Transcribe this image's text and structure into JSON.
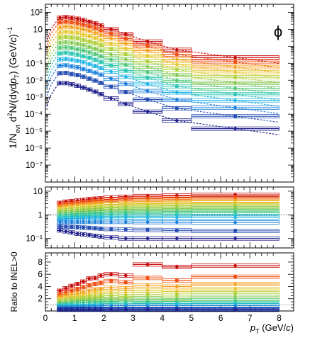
{
  "chart_data": [
    {
      "type": "scatter",
      "panel": "spectra",
      "symbol": "ϕ",
      "ylabel_parts": [
        "1/N",
        "evt",
        " d",
        "2",
        "N/(dyd",
        "p",
        "T",
        ") (GeV/",
        "c",
        ")",
        "−1"
      ],
      "y_scale": "log",
      "ylim": [
        1e-08,
        300
      ],
      "xlim": [
        0,
        8.5
      ],
      "ytick_labels": {
        "2": "10²",
        "1": "10",
        "0": "1",
        "-1": "10⁻¹",
        "-2": "10⁻²",
        "-3": "10⁻³",
        "-4": "10⁻⁴",
        "-5": "10⁻⁵",
        "-6": "10⁻⁶",
        "-7": "10⁻⁷"
      },
      "x_bins": [
        [
          0.4,
          0.6
        ],
        [
          0.6,
          0.8
        ],
        [
          0.8,
          1.0
        ],
        [
          1.0,
          1.2
        ],
        [
          1.2,
          1.4
        ],
        [
          1.4,
          1.6
        ],
        [
          1.6,
          1.8
        ],
        [
          1.8,
          2.0
        ],
        [
          2.0,
          2.5
        ],
        [
          2.5,
          3.0
        ],
        [
          3.0,
          4.0
        ],
        [
          4.0,
          5.0
        ],
        [
          5.0,
          8.0
        ]
      ],
      "series_colors": [
        "#c80a0a",
        "#f05014",
        "#f5a01e",
        "#e6c832",
        "#b4d240",
        "#82c850",
        "#50c878",
        "#32c8b4",
        "#1eb4e6",
        "#1e82dc",
        "#2850b4",
        "#1e1e8c"
      ],
      "series": [
        {
          "values": [
            48,
            52,
            48,
            42,
            35,
            28,
            22,
            17,
            10,
            5.2,
            1.9,
            0.62,
            0.22
          ]
        },
        {
          "values": [
            26,
            28,
            26,
            23,
            19,
            15,
            12,
            9,
            5.4,
            2.8,
            1.05,
            0.33,
            0.12
          ]
        },
        {
          "values": [
            13,
            14.5,
            13.5,
            12,
            10,
            8,
            6.3,
            4.8,
            2.9,
            1.45,
            0.55,
            0.17,
            0.06
          ]
        },
        {
          "values": [
            6.5,
            7.2,
            6.7,
            5.9,
            4.9,
            3.9,
            3.1,
            2.3,
            1.4,
            0.72,
            0.27,
            0.085,
            0.03
          ]
        },
        {
          "values": [
            3.3,
            3.6,
            3.3,
            2.9,
            2.4,
            1.9,
            1.5,
            1.15,
            0.7,
            0.35,
            0.13,
            0.042,
            0.015
          ]
        },
        {
          "values": [
            1.6,
            1.75,
            1.6,
            1.4,
            1.15,
            0.92,
            0.72,
            0.55,
            0.33,
            0.17,
            0.063,
            0.02,
            0.007
          ]
        },
        {
          "values": [
            0.8,
            0.85,
            0.78,
            0.68,
            0.56,
            0.44,
            0.35,
            0.26,
            0.16,
            0.08,
            0.03,
            0.0095,
            0.0033
          ]
        },
        {
          "values": [
            0.38,
            0.41,
            0.37,
            0.32,
            0.26,
            0.21,
            0.16,
            0.12,
            0.074,
            0.037,
            0.014,
            0.0044,
            0.0015
          ]
        },
        {
          "values": [
            0.17,
            0.18,
            0.16,
            0.14,
            0.115,
            0.09,
            0.07,
            0.052,
            0.032,
            0.016,
            0.006,
            0.0019,
            0.00065
          ]
        },
        {
          "values": [
            0.072,
            0.075,
            0.066,
            0.057,
            0.046,
            0.036,
            0.028,
            0.021,
            0.0125,
            0.0062,
            0.0023,
            0.0007,
            0.00024
          ]
        },
        {
          "values": [
            0.026,
            0.027,
            0.023,
            0.02,
            0.016,
            0.0125,
            0.0096,
            0.007,
            0.0041,
            0.002,
            0.00072,
            0.00022,
            7.5e-05
          ]
        },
        {
          "values": [
            0.0068,
            0.0068,
            0.0057,
            0.0047,
            0.0037,
            0.0028,
            0.0021,
            0.0015,
            0.00085,
            0.0004,
            0.00014,
            4.2e-05,
            1.4e-05
          ]
        }
      ],
      "fit_style": "dashed"
    },
    {
      "type": "scatter",
      "panel": "ratio",
      "y_scale": "log",
      "ylim": [
        0.04,
        15
      ],
      "ytick_labels": {
        "1": "10",
        "0": "1",
        "-1": "10⁻¹"
      },
      "reference_line": 1,
      "x_bins": [
        [
          0.4,
          0.6
        ],
        [
          0.6,
          0.8
        ],
        [
          0.8,
          1.0
        ],
        [
          1.0,
          1.2
        ],
        [
          1.2,
          1.4
        ],
        [
          1.4,
          1.6
        ],
        [
          1.6,
          1.8
        ],
        [
          1.8,
          2.0
        ],
        [
          2.0,
          2.5
        ],
        [
          2.5,
          3.0
        ],
        [
          3.0,
          4.0
        ],
        [
          4.0,
          5.0
        ],
        [
          5.0,
          8.0
        ]
      ],
      "series": [
        {
          "values": [
            3.2,
            3.6,
            3.8,
            4.0,
            4.3,
            4.6,
            4.8,
            5.0,
            5.4,
            5.8,
            6.2,
            6.6,
            7.0
          ]
        },
        {
          "values": [
            2.6,
            2.9,
            3.0,
            3.2,
            3.4,
            3.6,
            3.8,
            4.0,
            4.3,
            4.6,
            4.9,
            5.2,
            5.5
          ]
        },
        {
          "values": [
            2.1,
            2.3,
            2.4,
            2.55,
            2.7,
            2.85,
            3.0,
            3.1,
            3.3,
            3.5,
            3.7,
            3.9,
            4.1
          ]
        },
        {
          "values": [
            1.75,
            1.9,
            2.0,
            2.1,
            2.2,
            2.3,
            2.4,
            2.5,
            2.65,
            2.8,
            2.95,
            3.1,
            3.25
          ]
        },
        {
          "values": [
            1.45,
            1.55,
            1.62,
            1.7,
            1.78,
            1.85,
            1.92,
            2.0,
            2.1,
            2.2,
            2.3,
            2.4,
            2.5
          ]
        },
        {
          "values": [
            1.2,
            1.28,
            1.33,
            1.38,
            1.43,
            1.48,
            1.53,
            1.57,
            1.63,
            1.7,
            1.76,
            1.82,
            1.88
          ]
        },
        {
          "values": [
            1.0,
            1.05,
            1.08,
            1.11,
            1.14,
            1.17,
            1.2,
            1.23,
            1.27,
            1.31,
            1.35,
            1.39,
            1.43
          ]
        },
        {
          "values": [
            0.82,
            0.85,
            0.87,
            0.89,
            0.91,
            0.93,
            0.95,
            0.96,
            0.98,
            1.0,
            1.02,
            1.04,
            1.06
          ]
        },
        {
          "values": [
            0.66,
            0.68,
            0.69,
            0.7,
            0.71,
            0.72,
            0.73,
            0.73,
            0.74,
            0.75,
            0.75,
            0.76,
            0.77
          ]
        },
        {
          "values": [
            0.5,
            0.5,
            0.5,
            0.5,
            0.5,
            0.5,
            0.5,
            0.5,
            0.5,
            0.5,
            0.49,
            0.49,
            0.48
          ]
        },
        {
          "values": [
            0.33,
            0.32,
            0.31,
            0.3,
            0.29,
            0.28,
            0.27,
            0.26,
            0.25,
            0.24,
            0.23,
            0.22,
            0.21
          ]
        },
        {
          "values": [
            0.22,
            0.2,
            0.18,
            0.16,
            0.15,
            0.14,
            0.13,
            0.12,
            0.11,
            0.1,
            0.1,
            0.1,
            0.1
          ]
        }
      ]
    },
    {
      "type": "scatter",
      "panel": "ratio-to-inel",
      "ylabel": "Ratio to INEL>0",
      "y_scale": "linear",
      "ylim": [
        0,
        9.5
      ],
      "yticks": [
        2,
        4,
        6,
        8
      ],
      "reference_line": 1,
      "xlim": [
        0,
        8.5
      ],
      "xticks": [
        0,
        1,
        2,
        3,
        4,
        5,
        6,
        7,
        8
      ],
      "xlabel_parts": [
        "p",
        "T",
        " (GeV/",
        "c",
        ")"
      ],
      "x_bins": [
        [
          0.4,
          0.6
        ],
        [
          0.6,
          0.8
        ],
        [
          0.8,
          1.0
        ],
        [
          1.0,
          1.2
        ],
        [
          1.2,
          1.4
        ],
        [
          1.4,
          1.6
        ],
        [
          1.6,
          1.8
        ],
        [
          1.8,
          2.0
        ],
        [
          2.0,
          2.5
        ],
        [
          2.5,
          3.0
        ],
        [
          3.0,
          4.0
        ],
        [
          4.0,
          5.0
        ],
        [
          5.0,
          8.0
        ]
      ],
      "series": [
        {
          "values": [
            3.3,
            3.7,
            4.1,
            4.4,
            4.8,
            5.3,
            5.4,
            5.8,
            6.0,
            5.8,
            7.6,
            7.2,
            7.4
          ]
        },
        {
          "values": [
            2.7,
            3.0,
            3.3,
            3.6,
            3.9,
            4.2,
            4.4,
            4.6,
            4.9,
            4.7,
            5.4,
            5.0,
            5.6
          ]
        },
        {
          "values": [
            2.3,
            2.5,
            2.7,
            2.9,
            3.1,
            3.3,
            3.5,
            3.6,
            3.8,
            3.7,
            4.2,
            4.0,
            4.4
          ]
        },
        {
          "values": [
            1.9,
            2.1,
            2.3,
            2.4,
            2.6,
            2.7,
            2.9,
            3.0,
            3.1,
            3.0,
            3.4,
            3.2,
            3.6
          ]
        },
        {
          "values": [
            1.6,
            1.75,
            1.9,
            2.0,
            2.1,
            2.2,
            2.3,
            2.4,
            2.5,
            2.4,
            2.7,
            2.6,
            2.9
          ]
        },
        {
          "values": [
            1.35,
            1.45,
            1.55,
            1.6,
            1.7,
            1.8,
            1.85,
            1.9,
            2.0,
            1.95,
            2.1,
            2.0,
            2.3
          ]
        },
        {
          "values": [
            1.1,
            1.2,
            1.25,
            1.3,
            1.35,
            1.4,
            1.45,
            1.5,
            1.55,
            1.5,
            1.6,
            1.55,
            1.7
          ]
        },
        {
          "values": [
            0.9,
            0.95,
            1.0,
            1.05,
            1.05,
            1.1,
            1.1,
            1.15,
            1.15,
            1.15,
            1.2,
            1.2,
            1.25
          ]
        },
        {
          "values": [
            0.72,
            0.74,
            0.76,
            0.78,
            0.8,
            0.82,
            0.83,
            0.85,
            0.86,
            0.86,
            0.88,
            0.88,
            0.9
          ]
        },
        {
          "values": [
            0.55,
            0.55,
            0.56,
            0.57,
            0.57,
            0.58,
            0.58,
            0.59,
            0.59,
            0.59,
            0.6,
            0.6,
            0.6
          ]
        },
        {
          "values": [
            0.36,
            0.36,
            0.36,
            0.36,
            0.36,
            0.36,
            0.36,
            0.36,
            0.35,
            0.35,
            0.35,
            0.35,
            0.35
          ]
        },
        {
          "values": [
            0.2,
            0.2,
            0.2,
            0.2,
            0.2,
            0.2,
            0.2,
            0.2,
            0.19,
            0.19,
            0.19,
            0.19,
            0.19
          ]
        }
      ]
    }
  ]
}
